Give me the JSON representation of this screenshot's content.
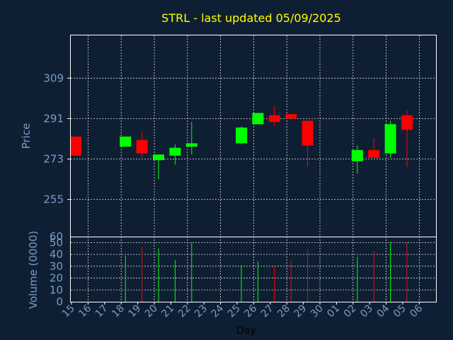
{
  "chart_data": {
    "type": "candlestick",
    "title": "STRL - last updated 05/09/2025",
    "xlabel": "Day",
    "price_panel": {
      "ylabel": "Price",
      "yticks": [
        255,
        273,
        291,
        309
      ],
      "ylim": [
        238.5,
        328
      ]
    },
    "volume_panel": {
      "ylabel": "Volume (0000)",
      "yticks": [
        0,
        10,
        20,
        30,
        40,
        50,
        60
      ],
      "ylim": [
        0,
        55
      ]
    },
    "x_tick_labels": [
      "15",
      "16",
      "17",
      "18",
      "19",
      "20",
      "21",
      "22",
      "23",
      "24",
      "25",
      "26",
      "27",
      "28",
      "29",
      "30",
      "01",
      "02",
      "03",
      "04",
      "05",
      "06"
    ],
    "grid": true,
    "up_color": "#00ff00",
    "down_color": "#ff0000",
    "candles": [
      {
        "x": 0,
        "open": 283.0,
        "high": 283.0,
        "low": 274.5,
        "close": 274.5,
        "volume": 0
      },
      {
        "x": 3,
        "open": 278.5,
        "high": 283.0,
        "low": 278.5,
        "close": 283.0,
        "volume": 39
      },
      {
        "x": 4,
        "open": 281.5,
        "high": 285.5,
        "low": 273.5,
        "close": 275.5,
        "volume": 46
      },
      {
        "x": 5,
        "open": 272.5,
        "high": 275.0,
        "low": 264.0,
        "close": 275.0,
        "volume": 45
      },
      {
        "x": 6,
        "open": 274.5,
        "high": 279.5,
        "low": 270.5,
        "close": 278.0,
        "volume": 35
      },
      {
        "x": 7,
        "open": 278.5,
        "high": 289.5,
        "low": 275.0,
        "close": 280.0,
        "volume": 50
      },
      {
        "x": 10,
        "open": 280.0,
        "high": 287.5,
        "low": 279.5,
        "close": 287.0,
        "volume": 31
      },
      {
        "x": 11,
        "open": 288.5,
        "high": 293.5,
        "low": 288.5,
        "close": 293.5,
        "volume": 34
      },
      {
        "x": 12,
        "open": 292.5,
        "high": 296.5,
        "low": 287.5,
        "close": 289.5,
        "volume": 30
      },
      {
        "x": 13,
        "open": 293.0,
        "high": 293.0,
        "low": 290.5,
        "close": 291.0,
        "volume": 35
      },
      {
        "x": 14,
        "open": 290.0,
        "high": 290.0,
        "low": 269.5,
        "close": 279.0,
        "volume": 44
      },
      {
        "x": 17,
        "open": 272.0,
        "high": 279.0,
        "low": 266.5,
        "close": 277.0,
        "volume": 38
      },
      {
        "x": 18,
        "open": 277.0,
        "high": 282.5,
        "low": 273.5,
        "close": 273.5,
        "volume": 43
      },
      {
        "x": 19,
        "open": 275.5,
        "high": 290.0,
        "low": 273.5,
        "close": 288.5,
        "volume": 50
      },
      {
        "x": 20,
        "open": 292.5,
        "high": 294.5,
        "low": 269.5,
        "close": 286.0,
        "volume": 50
      }
    ]
  }
}
